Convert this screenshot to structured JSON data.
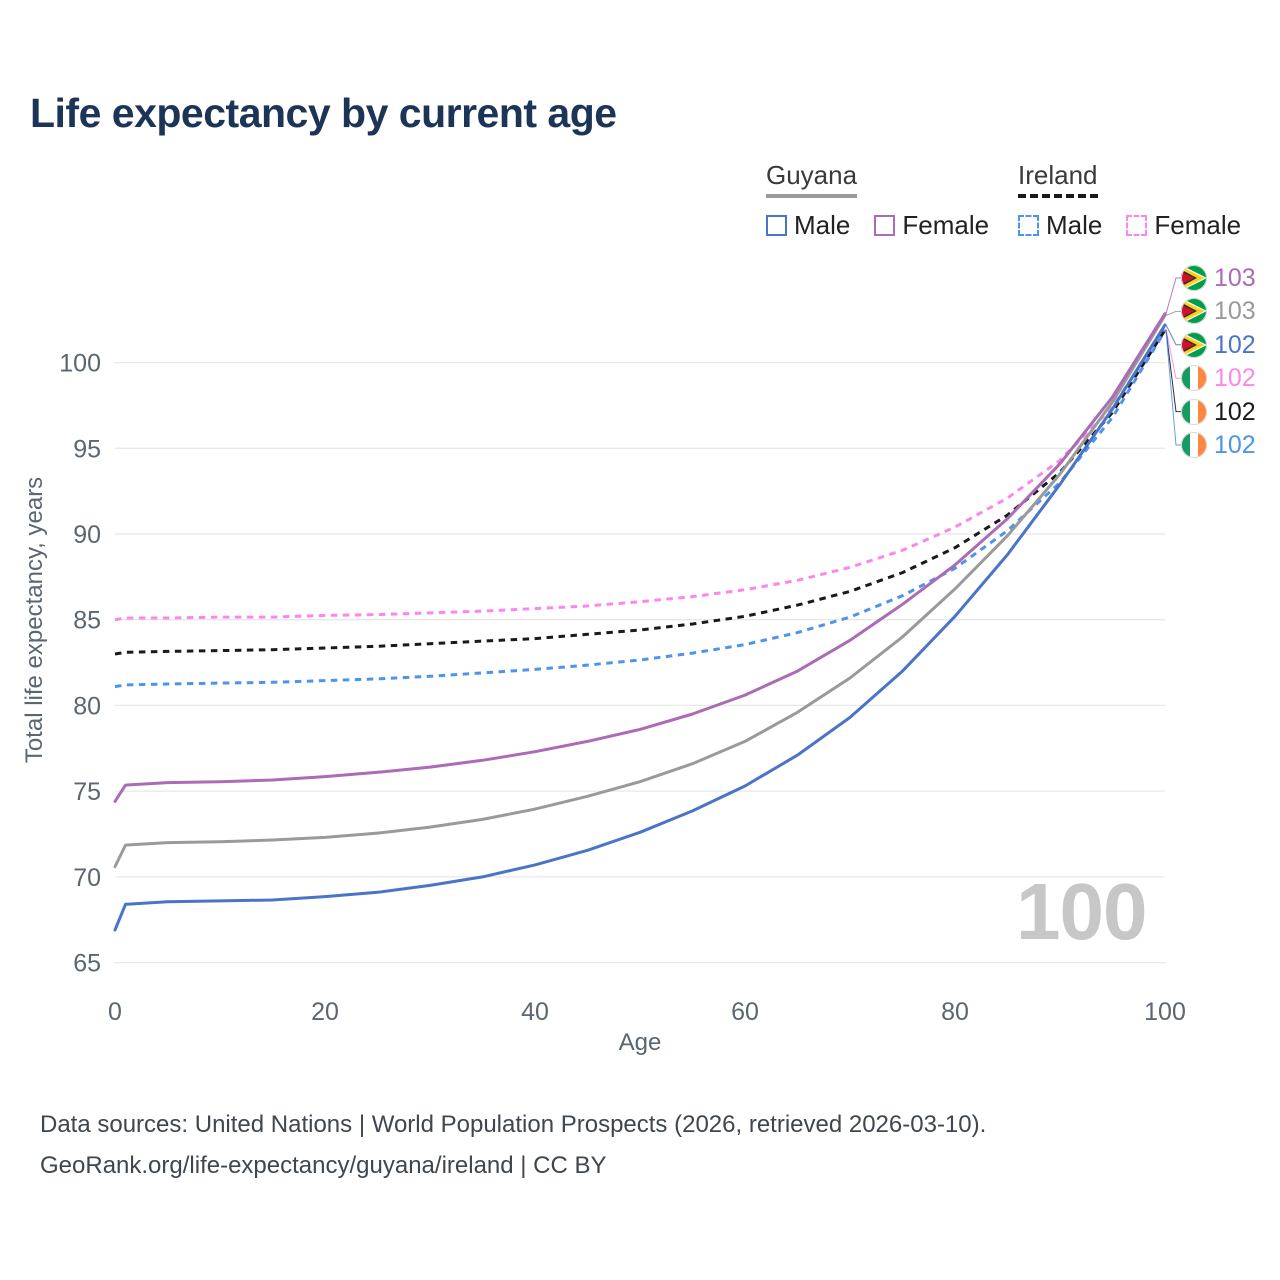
{
  "title": "Life expectancy by current age",
  "legend": {
    "groups": [
      {
        "label": "Guyana",
        "style": "solid",
        "items": [
          {
            "label": "Male",
            "color": "#4a74c8"
          },
          {
            "label": "Female",
            "color": "#ab6bb5"
          }
        ]
      },
      {
        "label": "Ireland",
        "style": "dashed",
        "items": [
          {
            "label": "Male",
            "color": "#4d94ea"
          },
          {
            "label": "Female",
            "color": "#fb87ec"
          }
        ]
      }
    ]
  },
  "chart_data": {
    "type": "line",
    "title": "Life expectancy by current age",
    "xlabel": "Age",
    "ylabel": "Total life expectancy, years",
    "xlim": [
      0,
      100
    ],
    "ylim": [
      63.4,
      105.4
    ],
    "x_ticks": [
      0,
      20,
      40,
      60,
      80,
      100
    ],
    "y_ticks": [
      65,
      70,
      75,
      80,
      85,
      90,
      95,
      100
    ],
    "grid": "horizontal",
    "legend_position": "top-right",
    "hover_age_watermark": "100",
    "x": [
      0,
      1,
      5,
      10,
      15,
      20,
      25,
      30,
      35,
      40,
      45,
      50,
      55,
      60,
      65,
      70,
      75,
      80,
      85,
      90,
      95,
      100
    ],
    "series": [
      {
        "id": "ireland-female",
        "name": "Ireland Female",
        "country": "Ireland",
        "sex": "Female",
        "color": "#fb87ec",
        "dashed": true,
        "values": [
          85.0,
          85.1,
          85.1,
          85.15,
          85.15,
          85.25,
          85.3,
          85.4,
          85.5,
          85.65,
          85.8,
          86.05,
          86.35,
          86.75,
          87.3,
          88.05,
          89.05,
          90.4,
          92.1,
          94.3,
          97.4,
          101.95
        ]
      },
      {
        "id": "ireland-total",
        "name": "Ireland Both sexes",
        "country": "Ireland",
        "sex": "Both",
        "color": "#1a1a1a",
        "dashed": true,
        "values": [
          83.0,
          83.1,
          83.15,
          83.2,
          83.25,
          83.35,
          83.45,
          83.6,
          83.75,
          83.9,
          84.15,
          84.4,
          84.75,
          85.2,
          85.85,
          86.65,
          87.75,
          89.2,
          91.1,
          93.6,
          97.1,
          101.9
        ]
      },
      {
        "id": "ireland-male",
        "name": "Ireland Male",
        "country": "Ireland",
        "sex": "Male",
        "color": "#4d94ea",
        "dashed": true,
        "values": [
          81.1,
          81.2,
          81.25,
          81.3,
          81.35,
          81.45,
          81.55,
          81.7,
          81.9,
          82.1,
          82.35,
          82.65,
          83.05,
          83.55,
          84.25,
          85.15,
          86.4,
          88.0,
          90.2,
          93.0,
          96.8,
          101.85
        ]
      },
      {
        "id": "guyana-male",
        "name": "Guyana Male",
        "country": "Guyana",
        "sex": "Male",
        "color": "#4a74c8",
        "dashed": false,
        "values": [
          66.9,
          68.4,
          68.55,
          68.6,
          68.65,
          68.85,
          69.1,
          69.5,
          70.0,
          70.7,
          71.55,
          72.6,
          73.85,
          75.3,
          77.1,
          79.3,
          82.0,
          85.2,
          88.8,
          92.9,
          97.3,
          102.2
        ]
      },
      {
        "id": "guyana-total",
        "name": "Guyana Both sexes",
        "country": "Guyana",
        "sex": "Both",
        "color": "#9a9a9a",
        "dashed": false,
        "values": [
          70.6,
          71.85,
          72.0,
          72.05,
          72.15,
          72.3,
          72.55,
          72.9,
          73.35,
          73.95,
          74.7,
          75.55,
          76.6,
          77.9,
          79.6,
          81.6,
          84.0,
          86.8,
          89.9,
          93.5,
          97.7,
          102.75
        ]
      },
      {
        "id": "guyana-female",
        "name": "Guyana Female",
        "country": "Guyana",
        "sex": "Female",
        "color": "#ab6bb5",
        "dashed": false,
        "values": [
          74.4,
          75.35,
          75.5,
          75.55,
          75.65,
          75.85,
          76.1,
          76.4,
          76.8,
          77.3,
          77.9,
          78.6,
          79.5,
          80.6,
          82.0,
          83.8,
          85.9,
          88.2,
          90.9,
          94.1,
          98.0,
          102.85
        ]
      }
    ]
  },
  "end_labels": [
    {
      "series": "guyana-female",
      "value": "103",
      "color": "#ab6bb5",
      "flag": "guyana"
    },
    {
      "series": "guyana-total",
      "value": "103",
      "color": "#9a9a9a",
      "flag": "guyana"
    },
    {
      "series": "guyana-male",
      "value": "102",
      "color": "#4a74c8",
      "flag": "guyana"
    },
    {
      "series": "ireland-female",
      "value": "102",
      "color": "#fb87ec",
      "flag": "ireland"
    },
    {
      "series": "ireland-total",
      "value": "102",
      "color": "#1a1a1a",
      "flag": "ireland"
    },
    {
      "series": "ireland-male",
      "value": "102",
      "color": "#4d94ea",
      "flag": "ireland"
    }
  ],
  "footer": {
    "line1": "Data sources: United Nations | World Population Prospects (2026, retrieved 2026-03-10).",
    "line2": "GeoRank.org/life-expectancy/guyana/ireland | CC BY"
  }
}
